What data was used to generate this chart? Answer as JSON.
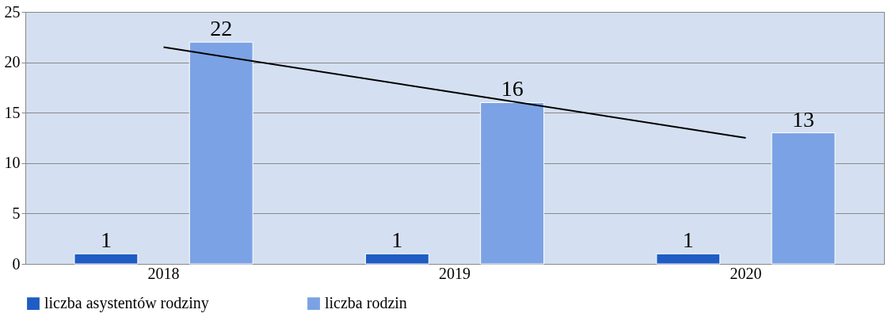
{
  "chart_data": {
    "type": "bar",
    "categories": [
      "2018",
      "2019",
      "2020"
    ],
    "series": [
      {
        "name": "liczba asystentów rodziny",
        "color": "#1f5cc4",
        "values": [
          1,
          1,
          1
        ],
        "value_labels": [
          "1",
          "1",
          "1"
        ]
      },
      {
        "name": "liczba rodzin",
        "color": "#7ba2e4",
        "values": [
          22,
          16,
          13
        ],
        "value_labels": [
          "22",
          "16",
          "13"
        ]
      },
      {
        "type": "line",
        "color": "#000000",
        "values": [
          21.5,
          17,
          12.5
        ]
      }
    ],
    "ylim": [
      0,
      25
    ],
    "yticks": [
      0,
      5,
      10,
      15,
      20,
      25
    ],
    "grid": "y",
    "legend": "bottom"
  }
}
